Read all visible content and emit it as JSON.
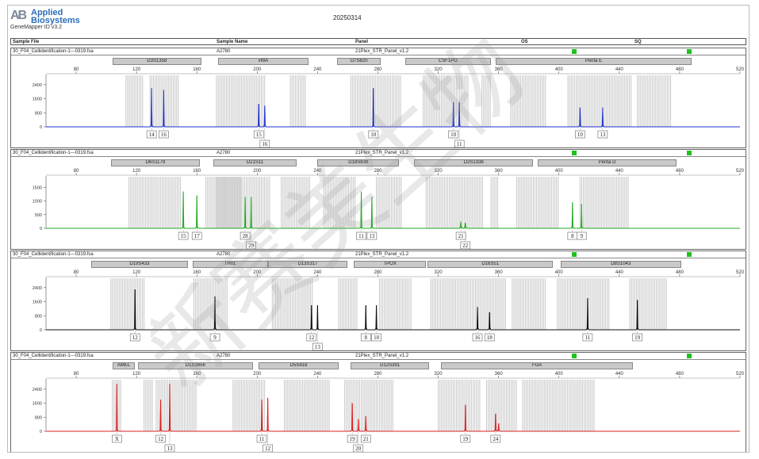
{
  "app": {
    "brand_mark": "AB",
    "brand_name_1": "Applied",
    "brand_name_2": "Biosystems",
    "version": "GeneMapper ID v3.2",
    "report_date": "20250314"
  },
  "header": {
    "sample_file": "Sample File",
    "sample_name": "Sample Name",
    "panel": "Panel",
    "os": "OS",
    "sq": "SQ"
  },
  "watermark": "新赛美生物",
  "colors": {
    "blue": "#2233cc",
    "green": "#22aa22",
    "black": "#111111",
    "red": "#dd2222",
    "bin": "#cccccc",
    "flag": "#20c020"
  },
  "ticks": [
    "80",
    "120",
    "160",
    "200",
    "240",
    "280",
    "320",
    "360",
    "400",
    "440",
    "480",
    "520"
  ],
  "panels": [
    {
      "key": "blue",
      "file": "30_F04_Cellidentification-1---0319.fsa",
      "sample": "A2780",
      "panel": "21Plex_STR_Panel_v1.2",
      "yticks": [
        "2400",
        "1600",
        "800",
        "0"
      ],
      "ymax": 2800,
      "markers": [
        {
          "name": "D3S1358",
          "start": 104,
          "end": 163
        },
        {
          "name": "vWA",
          "start": 174,
          "end": 234
        },
        {
          "name": "D7S820",
          "start": 253,
          "end": 282
        },
        {
          "name": "CSF1PO",
          "start": 298,
          "end": 355
        },
        {
          "name": "Penta E",
          "start": 358,
          "end": 488
        }
      ],
      "peaks": [
        {
          "x": 130,
          "h": 2200
        },
        {
          "x": 138,
          "h": 2100
        },
        {
          "x": 201,
          "h": 1300
        },
        {
          "x": 205,
          "h": 1200
        },
        {
          "x": 277,
          "h": 2200
        },
        {
          "x": 330,
          "h": 1400
        },
        {
          "x": 334,
          "h": 1400
        },
        {
          "x": 414,
          "h": 1100
        },
        {
          "x": 429,
          "h": 1100
        }
      ],
      "labels": [
        {
          "x": 130,
          "text": "14",
          "row": 0
        },
        {
          "x": 138,
          "text": "16",
          "row": 0
        },
        {
          "x": 201,
          "text": "15",
          "row": 0
        },
        {
          "x": 205,
          "text": "16",
          "row": 1
        },
        {
          "x": 277,
          "text": "10",
          "row": 0
        },
        {
          "x": 330,
          "text": "10",
          "row": 0
        },
        {
          "x": 334,
          "text": "11",
          "row": 1
        },
        {
          "x": 414,
          "text": "10",
          "row": 0
        },
        {
          "x": 429,
          "text": "13",
          "row": 0
        }
      ],
      "bins": [
        [
          113,
          125
        ],
        [
          129,
          148
        ],
        [
          173,
          205
        ],
        [
          222,
          232
        ],
        [
          262,
          296
        ],
        [
          310,
          340
        ],
        [
          349,
          355
        ],
        [
          368,
          392
        ],
        [
          406,
          448
        ],
        [
          452,
          475
        ]
      ]
    },
    {
      "key": "green",
      "file": "30_F04_Cellidentification-1---0319.fsa",
      "sample": "A2780",
      "panel": "21Plex_STR_Panel_v1.2",
      "yticks": [
        "1500",
        "1000",
        "500",
        "0"
      ],
      "ymax": 1800,
      "markers": [
        {
          "name": "D6S1179",
          "start": 103,
          "end": 162
        },
        {
          "name": "D21S11",
          "start": 171,
          "end": 226
        },
        {
          "name": "D18S839",
          "start": 240,
          "end": 294
        },
        {
          "name": "D2S1338",
          "start": 304,
          "end": 383
        },
        {
          "name": "Penta D",
          "start": 386,
          "end": 478
        }
      ],
      "peaks": [
        {
          "x": 151,
          "h": 1350
        },
        {
          "x": 160,
          "h": 1200
        },
        {
          "x": 192,
          "h": 1150
        },
        {
          "x": 196,
          "h": 1150
        },
        {
          "x": 269,
          "h": 1350
        },
        {
          "x": 276,
          "h": 1150
        },
        {
          "x": 335,
          "h": 250
        },
        {
          "x": 338,
          "h": 200
        },
        {
          "x": 409,
          "h": 950
        },
        {
          "x": 415,
          "h": 900
        }
      ],
      "labels": [
        {
          "x": 151,
          "text": "15",
          "row": 0
        },
        {
          "x": 160,
          "text": "17",
          "row": 0
        },
        {
          "x": 192,
          "text": "28",
          "row": 0
        },
        {
          "x": 196,
          "text": "29",
          "row": 1
        },
        {
          "x": 269,
          "text": "11",
          "row": 0
        },
        {
          "x": 276,
          "text": "13",
          "row": 0
        },
        {
          "x": 335,
          "text": "21",
          "row": 0
        },
        {
          "x": 338,
          "text": "22",
          "row": 1
        },
        {
          "x": 409,
          "text": "8",
          "row": 0
        },
        {
          "x": 415,
          "text": "9",
          "row": 0
        }
      ],
      "bins": [
        [
          115,
          150
        ],
        [
          166,
          190
        ],
        [
          173,
          209
        ],
        [
          216,
          235
        ],
        [
          244,
          266
        ],
        [
          279,
          296
        ],
        [
          312,
          350
        ],
        [
          355,
          360
        ],
        [
          372,
          400
        ],
        [
          414,
          447
        ]
      ]
    },
    {
      "key": "black",
      "file": "30_F04_Cellidentification-1---0319.fsa",
      "sample": "A2780",
      "panel": "21Plex_STR_Panel_v1.2",
      "yticks": [
        "2400",
        "1600",
        "800",
        "0"
      ],
      "ymax": 2800,
      "markers": [
        {
          "name": "D19S433",
          "start": 90,
          "end": 154
        },
        {
          "name": "TH01",
          "start": 157,
          "end": 207
        },
        {
          "name": "D13S317",
          "start": 207,
          "end": 260
        },
        {
          "name": "TPOX",
          "start": 264,
          "end": 312
        },
        {
          "name": "D16S51",
          "start": 313,
          "end": 396
        },
        {
          "name": "D8S1043",
          "start": 401,
          "end": 481
        }
      ],
      "peaks": [
        {
          "x": 119,
          "h": 2300
        },
        {
          "x": 172,
          "h": 1900
        },
        {
          "x": 236,
          "h": 1400
        },
        {
          "x": 240,
          "h": 1400
        },
        {
          "x": 272,
          "h": 1400
        },
        {
          "x": 279,
          "h": 1400
        },
        {
          "x": 346,
          "h": 1300
        },
        {
          "x": 354,
          "h": 1000
        },
        {
          "x": 419,
          "h": 1800
        },
        {
          "x": 452,
          "h": 1700
        }
      ],
      "labels": [
        {
          "x": 119,
          "text": "12",
          "row": 0
        },
        {
          "x": 172,
          "text": "9",
          "row": 0
        },
        {
          "x": 236,
          "text": "12",
          "row": 0
        },
        {
          "x": 240,
          "text": "13",
          "row": 1
        },
        {
          "x": 272,
          "text": "8",
          "row": 0
        },
        {
          "x": 279,
          "text": "10",
          "row": 0
        },
        {
          "x": 346,
          "text": "16",
          "row": 0
        },
        {
          "x": 354,
          "text": "18",
          "row": 0
        },
        {
          "x": 419,
          "text": "11",
          "row": 0
        },
        {
          "x": 452,
          "text": "19",
          "row": 0
        }
      ],
      "bins": [
        [
          103,
          126
        ],
        [
          158,
          181
        ],
        [
          210,
          237
        ],
        [
          254,
          267
        ],
        [
          281,
          302
        ],
        [
          315,
          365
        ],
        [
          369,
          392
        ],
        [
          399,
          434
        ],
        [
          447,
          472
        ]
      ]
    },
    {
      "key": "red",
      "file": "30_F04_Cellidentification-1---0319.fsa",
      "sample": "A2780",
      "panel": "21Plex_STR_Panel_v1.2",
      "yticks": [
        "2400",
        "1600",
        "800",
        "0"
      ],
      "ymax": 2800,
      "markers": [
        {
          "name": "AMEL",
          "start": 104,
          "end": 119
        },
        {
          "name": "D1S1656",
          "start": 121,
          "end": 197
        },
        {
          "name": "D5S818",
          "start": 201,
          "end": 254
        },
        {
          "name": "D12S391",
          "start": 262,
          "end": 314
        },
        {
          "name": "FGA",
          "start": 322,
          "end": 449
        }
      ],
      "peaks": [
        {
          "x": 107,
          "h": 2700
        },
        {
          "x": 136,
          "h": 1800
        },
        {
          "x": 142,
          "h": 2700
        },
        {
          "x": 203,
          "h": 1800
        },
        {
          "x": 207,
          "h": 1900
        },
        {
          "x": 263,
          "h": 1600
        },
        {
          "x": 267,
          "h": 700
        },
        {
          "x": 272,
          "h": 850
        },
        {
          "x": 338,
          "h": 1500
        },
        {
          "x": 358,
          "h": 1000
        },
        {
          "x": 360,
          "h": 450
        }
      ],
      "labels": [
        {
          "x": 107,
          "text": "X",
          "row": 0
        },
        {
          "x": 136,
          "text": "12",
          "row": 0
        },
        {
          "x": 142,
          "text": "13",
          "row": 1
        },
        {
          "x": 203,
          "text": "11",
          "row": 0
        },
        {
          "x": 207,
          "text": "12",
          "row": 1
        },
        {
          "x": 263,
          "text": "19",
          "row": 0
        },
        {
          "x": 267,
          "text": "20",
          "row": 1
        },
        {
          "x": 272,
          "text": "21",
          "row": 0
        },
        {
          "x": 338,
          "text": "19",
          "row": 0
        },
        {
          "x": 358,
          "text": "24",
          "row": 0
        }
      ],
      "bins": [
        [
          104,
          110
        ],
        [
          125,
          131
        ],
        [
          133,
          160
        ],
        [
          184,
          205
        ],
        [
          218,
          248
        ],
        [
          258,
          290
        ],
        [
          320,
          348
        ],
        [
          352,
          372
        ],
        [
          376,
          424
        ]
      ]
    }
  ]
}
